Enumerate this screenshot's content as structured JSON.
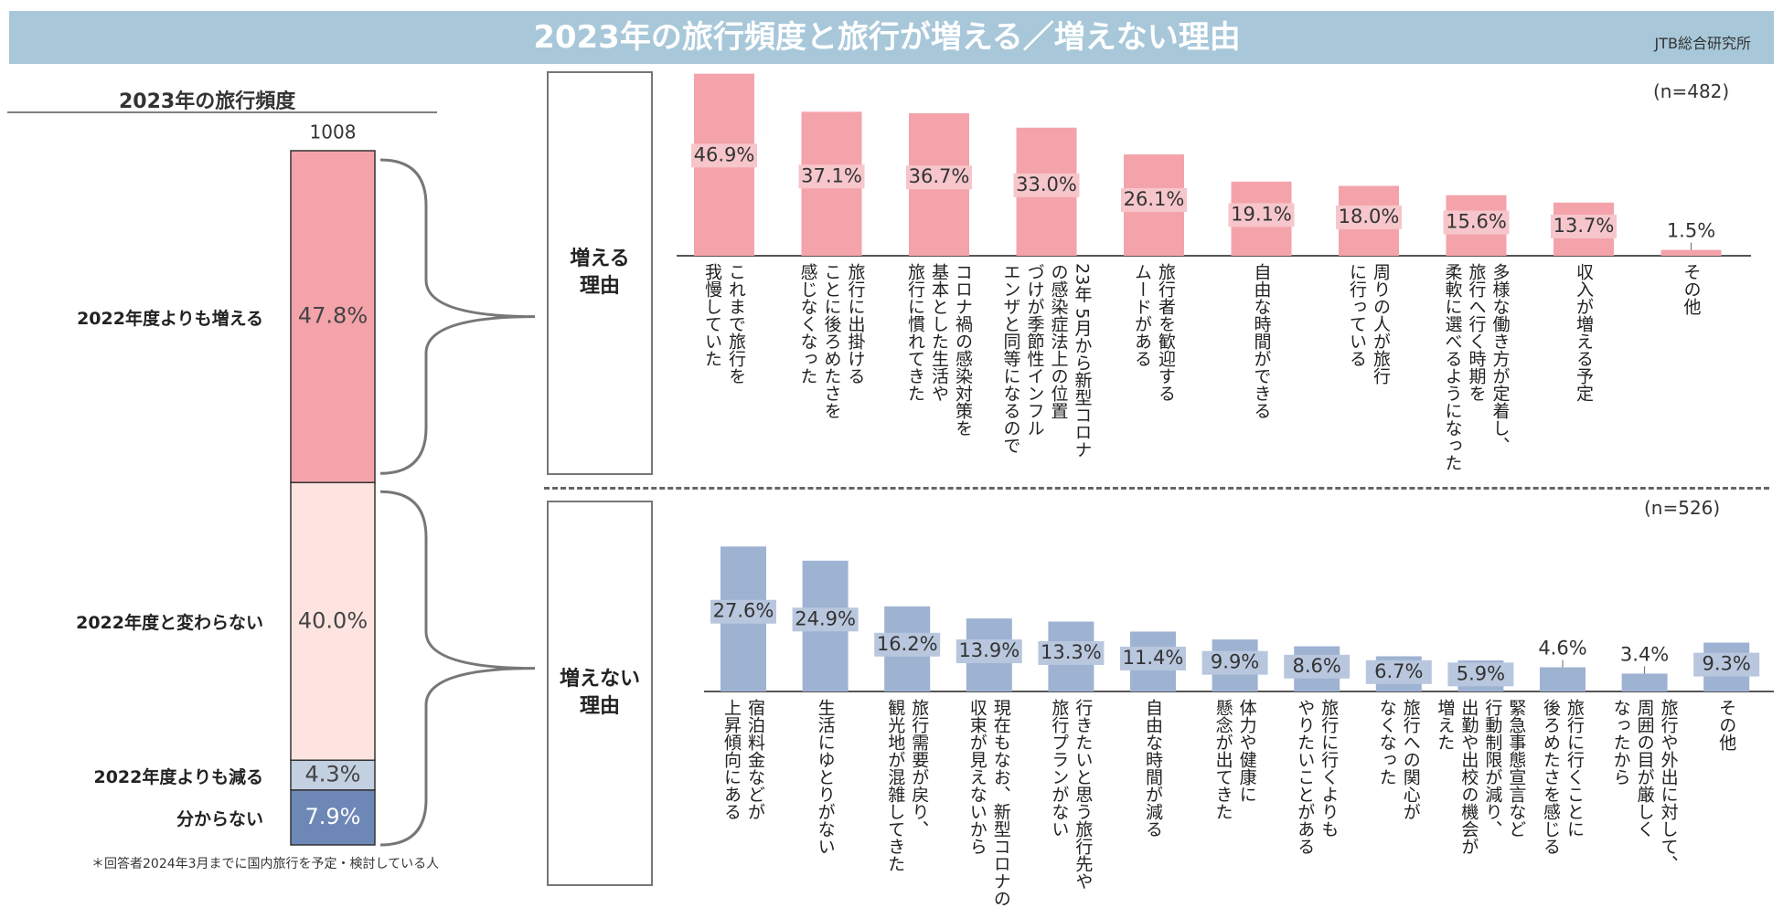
{
  "header": {
    "title": "2023年の旅行頻度と旅行が増える／増えない理由",
    "org": "JTB総合研究所"
  },
  "footnote": "＊回答者2024年3月までに国内旅行を予定・検討している人",
  "colors": {
    "header": "#a8c8da",
    "increase": "#f4a3aa",
    "same": "#fde4e0",
    "decrease": "#c2d0e2",
    "unknown": "#6d88b6",
    "notIncrease": "#9eb2d2",
    "labelBg": "#f6c6cb",
    "labelBgBlue": "#b8c7de"
  },
  "chart_data": [
    {
      "type": "bar",
      "title": "2023年の旅行頻度",
      "n_label": "1008",
      "stacked": true,
      "categories": [
        "2022年度よりも増える",
        "2022年度と変わらない",
        "2022年度よりも減る",
        "分からない"
      ],
      "values": [
        47.8,
        40.0,
        4.3,
        7.9
      ],
      "value_labels": [
        "47.8%",
        "40.0%",
        "4.3%",
        "7.9%"
      ]
    },
    {
      "type": "bar",
      "title": "増える\n理由",
      "n_label": "(n=482)",
      "categories": [
        "これまで旅行を\n我慢していた",
        "旅行に出掛ける\nことに後ろめたさを\n感じなくなった",
        "コロナ禍の感染対策を\n基本とした生活や\n旅行に慣れてきた",
        "23年 5月から新型コロナ\nの感染症法上の位置\nづけが季節性インフル\nエンザと同等になるので",
        "旅行者を歓迎する\nムードがある",
        "自由な時間ができる",
        "周りの人が旅行\nに行っている",
        "多様な働き方が定着し、\n旅行へ行く時期を\n柔軟に選べるようになった",
        "収入が増える予定",
        "その他"
      ],
      "values": [
        46.9,
        37.1,
        36.7,
        33.0,
        26.1,
        19.1,
        18.0,
        15.6,
        13.7,
        1.5
      ],
      "value_labels": [
        "46.9%",
        "37.1%",
        "36.7%",
        "33.0%",
        "26.1%",
        "19.1%",
        "18.0%",
        "15.6%",
        "13.7%",
        "1.5%"
      ]
    },
    {
      "type": "bar",
      "title": "増えない\n理由",
      "n_label": "(n=526)",
      "categories": [
        "宿泊料金などが\n上昇傾向にある",
        "生活にゆとりがない",
        "旅行需要が戻り、\n観光地が混雑してきた",
        "現在もなお、新型コロナの\n収束が見えないから",
        "行きたいと思う旅行先や\n旅行プランがない",
        "自由な時間が減る",
        "体力や健康に\n懸念が出てきた",
        "旅行に行くよりも\nやりたいことがある",
        "旅行への関心が\nなくなった",
        "緊急事態宣言など\n行動制限が減り、\n出勤や出校の機会が\n増えた",
        "旅行に行くことに\n後ろめたさを感じる",
        "旅行や外出に対して、\n周囲の目が厳しく\nなったから",
        "その他"
      ],
      "values": [
        27.6,
        24.9,
        16.2,
        13.9,
        13.3,
        11.4,
        9.9,
        8.6,
        6.7,
        5.9,
        4.6,
        3.4,
        9.3
      ],
      "value_labels": [
        "27.6%",
        "24.9%",
        "16.2%",
        "13.9%",
        "13.3%",
        "11.4%",
        "9.9%",
        "8.6%",
        "6.7%",
        "5.9%",
        "4.6%",
        "3.4%",
        "9.3%"
      ]
    }
  ]
}
